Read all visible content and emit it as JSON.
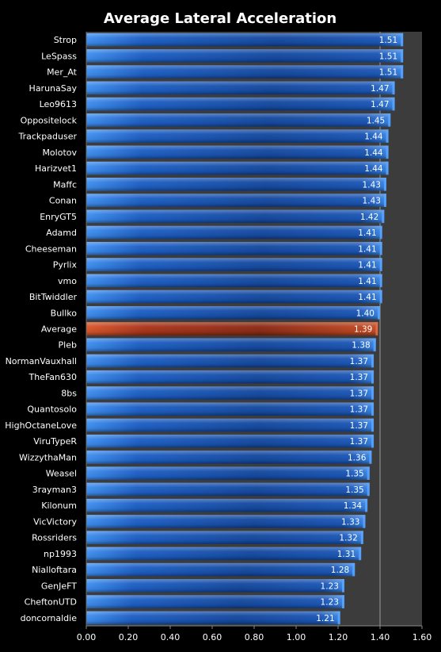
{
  "chart_data": {
    "type": "bar",
    "orientation": "horizontal",
    "title": "Average Lateral Acceleration",
    "xlim": [
      0,
      1.6
    ],
    "x_ticks": [
      "0.00",
      "0.20",
      "0.40",
      "0.60",
      "0.80",
      "1.00",
      "1.20",
      "1.40",
      "1.60"
    ],
    "reference_line": 1.4,
    "categories": [
      "Strop",
      "LeSpass",
      "Mer_At",
      "HarunaSay",
      "Leo9613",
      "Oppositelock",
      "Trackpaduser",
      "Molotov",
      "Harizvet1",
      "Maffc",
      "Conan",
      "EnryGT5",
      "Adamd",
      "Cheeseman",
      "Pyrlix",
      "vmo",
      "BitTwiddler",
      "Bullko",
      "Average",
      "Pleb",
      "NormanVauxhall",
      "TheFan630",
      "8bs",
      "Quantosolo",
      "HighOctaneLove",
      "ViruTypeR",
      "WizzythaMan",
      "Weasel",
      "3rayman3",
      "Kilonum",
      "VicVictory",
      "Rossriders",
      "np1993",
      "Nialloftara",
      "GenJeFT",
      "CheftonUTD",
      "doncornaldie"
    ],
    "values": [
      1.51,
      1.51,
      1.51,
      1.47,
      1.47,
      1.45,
      1.44,
      1.44,
      1.44,
      1.43,
      1.43,
      1.42,
      1.41,
      1.41,
      1.41,
      1.41,
      1.41,
      1.4,
      1.39,
      1.38,
      1.37,
      1.37,
      1.37,
      1.37,
      1.37,
      1.37,
      1.36,
      1.35,
      1.35,
      1.34,
      1.33,
      1.32,
      1.31,
      1.28,
      1.23,
      1.23,
      1.21
    ],
    "value_labels": [
      "1.51",
      "1.51",
      "1.51",
      "1.47",
      "1.47",
      "1.45",
      "1.44",
      "1.44",
      "1.44",
      "1.43",
      "1.43",
      "1.42",
      "1.41",
      "1.41",
      "1.41",
      "1.41",
      "1.41",
      "1.40",
      "1.39",
      "1.38",
      "1.37",
      "1.37",
      "1.37",
      "1.37",
      "1.37",
      "1.37",
      "1.36",
      "1.35",
      "1.35",
      "1.34",
      "1.33",
      "1.32",
      "1.31",
      "1.28",
      "1.23",
      "1.23",
      "1.21"
    ],
    "highlight_category": "Average",
    "colors": {
      "background": "#000000",
      "plot_background": "#3c3c3c",
      "bar": "#1f57b8",
      "bar_highlight": "#b0391a",
      "text": "#ffffff",
      "reference_line": "#9a9a9a"
    },
    "grid": false,
    "legend": "none"
  }
}
